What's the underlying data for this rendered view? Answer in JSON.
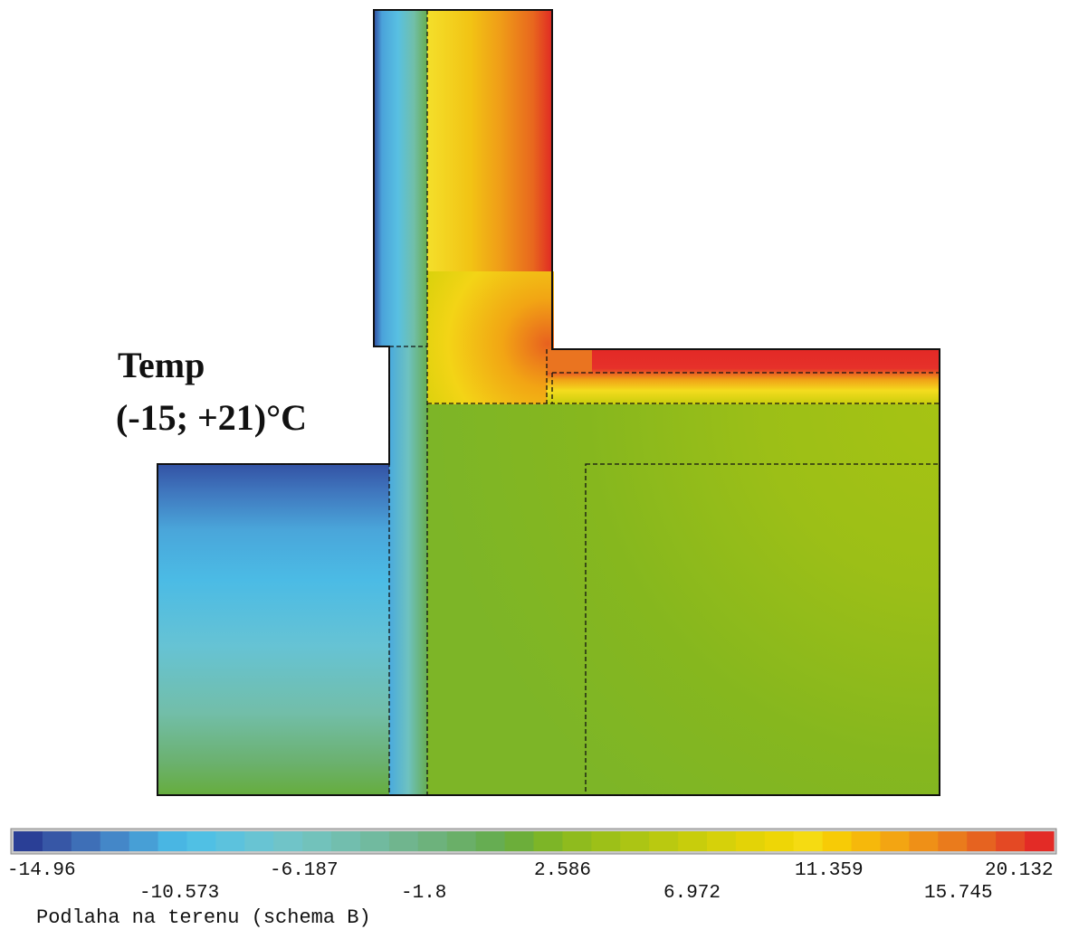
{
  "title": {
    "line1": "Temp",
    "line2": "(-15; +21)°C"
  },
  "colorbar": {
    "colors": [
      "#2a3f96",
      "#3757a6",
      "#3e6fb7",
      "#4487c8",
      "#479fd6",
      "#49b6e3",
      "#50c0e4",
      "#5cc2dd",
      "#68c4d3",
      "#70c4c8",
      "#72c2bb",
      "#72beae",
      "#71ba9f",
      "#70b58e",
      "#6db27c",
      "#6aaf68",
      "#66ad52",
      "#6cae3a",
      "#7db527",
      "#8fbb1e",
      "#9dc018",
      "#acc514",
      "#bac910",
      "#c8cd0c",
      "#d6d10a",
      "#e3d307",
      "#eed606",
      "#f5db12",
      "#f7cb06",
      "#f6b80b",
      "#f3a512",
      "#ef9017",
      "#ea7b1c",
      "#e66320",
      "#e44924",
      "#e32b26"
    ],
    "upper_ticks": [
      "-14.96",
      "-6.187",
      "2.586",
      "11.359",
      "20.132"
    ],
    "lower_ticks": [
      "-10.573",
      "-1.8",
      "6.972",
      "15.745"
    ]
  },
  "caption": "Podlaha na terenu (schema B)"
}
